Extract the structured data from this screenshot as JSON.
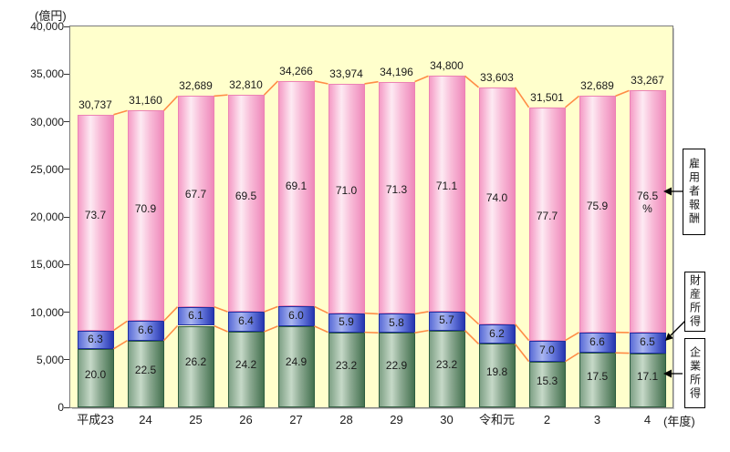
{
  "chart_data": {
    "type": "bar",
    "stacked": true,
    "title": "",
    "unit_y": "(億円)",
    "unit_x": "(年度)",
    "ylim": [
      0,
      40000
    ],
    "ytick_step": 5000,
    "yticks": [
      "40,000",
      "35,000",
      "30,000",
      "25,000",
      "20,000",
      "15,000",
      "10,000",
      "5,000",
      "0"
    ],
    "grid": false,
    "plot_bg": "#ffffcc",
    "connector_color": "#ff8c46",
    "categories": [
      "平成23",
      "24",
      "25",
      "26",
      "27",
      "28",
      "29",
      "30",
      "令和元",
      "2",
      "3",
      "4"
    ],
    "totals": [
      "30,737",
      "31,160",
      "32,689",
      "32,810",
      "34,266",
      "33,974",
      "34,196",
      "34,800",
      "33,603",
      "31,501",
      "32,689",
      "33,267"
    ],
    "pct_unit_label": "%",
    "series": [
      {
        "name": "企業所得",
        "key": "green",
        "color": "#44714f",
        "pct": [
          20.0,
          22.5,
          26.2,
          24.2,
          24.9,
          23.2,
          22.9,
          23.2,
          19.8,
          15.3,
          17.5,
          17.1
        ]
      },
      {
        "name": "財産所得",
        "key": "blue",
        "color": "#2535b0",
        "pct": [
          6.3,
          6.6,
          6.1,
          6.4,
          6.0,
          5.9,
          5.8,
          5.7,
          6.2,
          7.0,
          6.6,
          6.5
        ]
      },
      {
        "name": "雇用者報酬",
        "key": "pink",
        "color": "#ef88ba",
        "pct": [
          73.7,
          70.9,
          67.7,
          69.5,
          69.1,
          71.0,
          71.3,
          71.1,
          74.0,
          77.7,
          75.9,
          76.5
        ]
      }
    ],
    "legend_boxes": [
      {
        "label": "雇用者報酬"
      },
      {
        "label": "財産所得"
      },
      {
        "label": "企業所得"
      }
    ]
  }
}
